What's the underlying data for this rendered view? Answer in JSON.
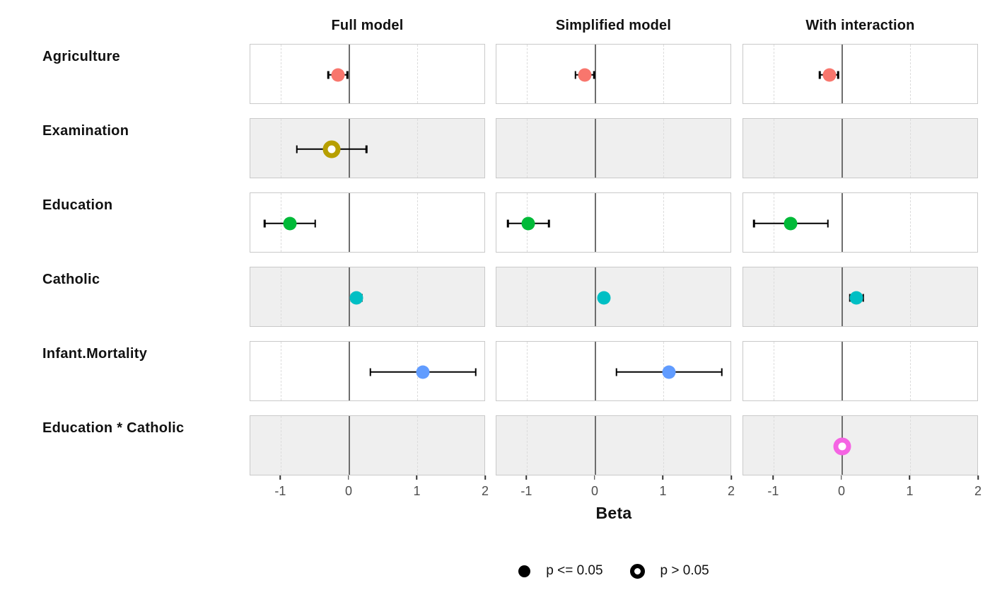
{
  "chart_data": {
    "type": "scatter",
    "subtype": "dot-whisker coefficient plot (faceted by model and term)",
    "xlabel": "Beta",
    "x_ticks": [
      -1,
      0,
      1,
      2
    ],
    "x_domain": [
      -1.45,
      2.0
    ],
    "grid": "dashed guides at -1 and 1, solid reference line at 0",
    "zebra_stripe_color": "#efefef",
    "models": [
      "Full model",
      "Simplified model",
      "With interaction"
    ],
    "terms": [
      {
        "label": "Agriculture",
        "color": "#F8766D"
      },
      {
        "label": "Examination",
        "color": "#B79F00"
      },
      {
        "label": "Education",
        "color": "#00BA38"
      },
      {
        "label": "Catholic",
        "color": "#00BFC4"
      },
      {
        "label": "Infant.Mortality",
        "color": "#619CFF"
      },
      {
        "label": "Education * Catholic",
        "color": "#F564E3"
      }
    ],
    "estimates": [
      {
        "model": "Full model",
        "term": "Agriculture",
        "beta": -0.17,
        "ci_low": -0.31,
        "ci_high": -0.03,
        "significant": true
      },
      {
        "model": "Full model",
        "term": "Examination",
        "beta": -0.26,
        "ci_low": -0.77,
        "ci_high": 0.25,
        "significant": false
      },
      {
        "model": "Full model",
        "term": "Education",
        "beta": -0.87,
        "ci_low": -1.24,
        "ci_high": -0.5,
        "significant": true
      },
      {
        "model": "Full model",
        "term": "Catholic",
        "beta": 0.1,
        "ci_low": 0.03,
        "ci_high": 0.18,
        "significant": true
      },
      {
        "model": "Full model",
        "term": "Infant.Mortality",
        "beta": 1.08,
        "ci_low": 0.31,
        "ci_high": 1.85,
        "significant": true
      },
      {
        "model": "Simplified model",
        "term": "Agriculture",
        "beta": -0.15,
        "ci_low": -0.29,
        "ci_high": -0.02,
        "significant": true
      },
      {
        "model": "Simplified model",
        "term": "Education",
        "beta": -0.98,
        "ci_low": -1.28,
        "ci_high": -0.68,
        "significant": true
      },
      {
        "model": "Simplified model",
        "term": "Catholic",
        "beta": 0.12,
        "ci_low": 0.07,
        "ci_high": 0.18,
        "significant": true
      },
      {
        "model": "Simplified model",
        "term": "Infant.Mortality",
        "beta": 1.08,
        "ci_low": 0.31,
        "ci_high": 1.85,
        "significant": true
      },
      {
        "model": "With interaction",
        "term": "Agriculture",
        "beta": -0.19,
        "ci_low": -0.33,
        "ci_high": -0.06,
        "significant": true
      },
      {
        "model": "With interaction",
        "term": "Education",
        "beta": -0.76,
        "ci_low": -1.29,
        "ci_high": -0.21,
        "significant": true
      },
      {
        "model": "With interaction",
        "term": "Catholic",
        "beta": 0.21,
        "ci_low": 0.11,
        "ci_high": 0.31,
        "significant": true
      },
      {
        "model": "With interaction",
        "term": "Education * Catholic",
        "beta": 0.0,
        "ci_low": -0.04,
        "ci_high": 0.04,
        "significant": false
      }
    ],
    "legend": [
      {
        "label": "p <= 0.05",
        "marker": "filled"
      },
      {
        "label": "p > 0.05",
        "marker": "open"
      }
    ],
    "colors": {
      "zero_line": "#6e6e6e",
      "whisker": "#000000",
      "panel_border": "#c9c9c9",
      "tick_text": "#4d4d4d"
    }
  }
}
